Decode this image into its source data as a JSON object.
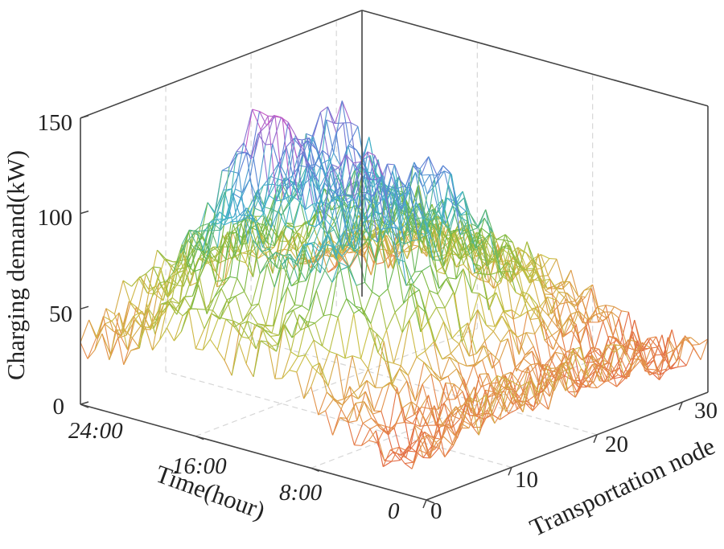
{
  "chart_data": {
    "type": "3d-surface-mesh",
    "title": "",
    "zlabel": "Charging demand(kW)",
    "xlabel": "Transportation node",
    "ylabel": "Time(hour)",
    "z_ticks": [
      "0",
      "50",
      "100",
      "150"
    ],
    "x_ticks": [
      "0",
      "10",
      "20",
      "30"
    ],
    "y_ticks": [
      "0",
      "8:00",
      "16:00",
      "24:00"
    ],
    "z_range": [
      0,
      150
    ],
    "x_range": [
      0,
      33
    ],
    "y_range_hours": [
      0,
      24
    ],
    "grid": true,
    "colormap": "jet",
    "colormap_stops": [
      "#e0473b",
      "#e68a4a",
      "#c9c043",
      "#70b840",
      "#3fb4c9",
      "#5f7fd6",
      "#c45bc6"
    ],
    "demand_profile_hours": [
      0,
      1.5,
      3,
      4.5,
      6,
      7.5,
      9,
      10.5,
      12,
      13.5,
      15,
      16.5,
      18,
      19.5,
      21,
      22.5,
      24
    ],
    "demand_profile_kw": [
      22,
      12,
      8,
      10,
      30,
      55,
      95,
      110,
      98,
      85,
      102,
      122,
      110,
      85,
      60,
      45,
      40
    ],
    "node_peaks": [
      {
        "node": 2,
        "scale": 0.45
      },
      {
        "node": 6,
        "scale": 0.8
      },
      {
        "node": 10,
        "scale": 1.15
      },
      {
        "node": 14,
        "scale": 0.95
      },
      {
        "node": 18,
        "scale": 1.0
      },
      {
        "node": 22,
        "scale": 0.75
      },
      {
        "node": 26,
        "scale": 0.5
      },
      {
        "node": 30,
        "scale": 0.3
      }
    ],
    "max_value_kw": 150
  }
}
